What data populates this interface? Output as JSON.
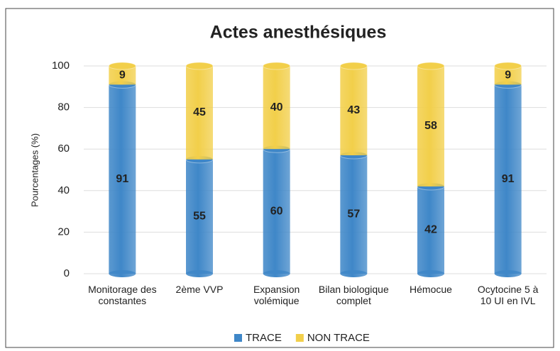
{
  "chart_data": {
    "type": "bar",
    "stacked": true,
    "title": "Actes anesthésiques",
    "y_label": "Pourcentages (%)",
    "categories": [
      "Monitorage des constantes",
      "2ème VVP",
      "Expansion volémique",
      "Bilan biologique complet",
      "Hémocue",
      "Ocytocine 5 à 10 UI en IVL"
    ],
    "series": [
      {
        "name": "TRACE",
        "color": "#3f87c8",
        "values": [
          91,
          55,
          60,
          57,
          42,
          91
        ]
      },
      {
        "name": "NON TRACE",
        "color": "#f2cf4a",
        "values": [
          9,
          45,
          40,
          43,
          58,
          9
        ]
      }
    ],
    "ylim": [
      0,
      100
    ],
    "yticks": [
      0,
      20,
      40,
      60,
      80,
      100
    ],
    "grid": true,
    "legend": "bottom"
  }
}
